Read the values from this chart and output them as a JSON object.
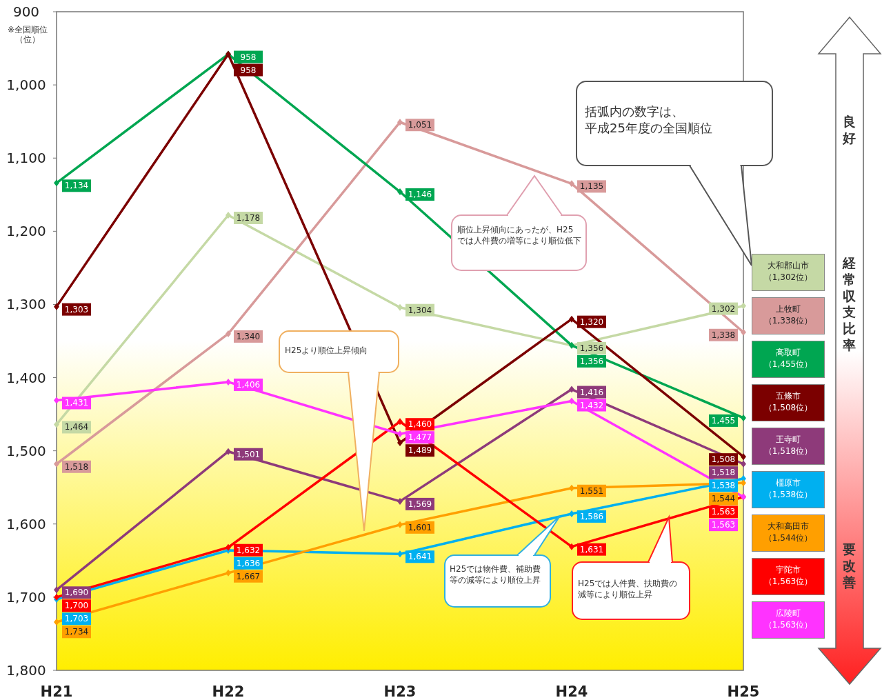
{
  "chart_data": {
    "type": "line",
    "ylabel": "※全国順位（位）",
    "categories": [
      "H21",
      "H22",
      "H23",
      "H24",
      "H25"
    ],
    "ylim": [
      1800,
      900
    ],
    "yticks": [
      900,
      {
        "value": 1000,
        "label": "1,000"
      },
      {
        "value": 1100,
        "label": "1,100"
      },
      {
        "value": 1200,
        "label": "1,200"
      },
      {
        "value": 1300,
        "label": "1,300"
      },
      {
        "value": 1400,
        "label": "1,400"
      },
      {
        "value": 1500,
        "label": "1,500"
      },
      {
        "value": 1600,
        "label": "1,600"
      },
      {
        "value": 1700,
        "label": "1,700"
      },
      {
        "value": 1800,
        "label": "1,800"
      }
    ],
    "series": [
      {
        "name": "大和郡山市（1,302位）",
        "color": "#c5d9a5",
        "values": [
          1464,
          1178,
          1304,
          1356,
          1302
        ],
        "value_labels": [
          "1,464",
          "1,178",
          "1,304",
          "1,356",
          "1,302"
        ]
      },
      {
        "name": "上牧町（1,338位）",
        "color": "#d89a9a",
        "values": [
          1518,
          1340,
          1051,
          1135,
          1338
        ],
        "value_labels": [
          "1,518",
          "1,340",
          "1,051",
          "1,135",
          "1,338"
        ]
      },
      {
        "name": "高取町（1,455位）",
        "color": "#00a651",
        "values": [
          1134,
          958,
          1146,
          1356,
          1455
        ],
        "value_labels": [
          "1,134",
          "958",
          "1,146",
          "1,356",
          "1,455"
        ]
      },
      {
        "name": "五條市（1,508位）",
        "color": "#7b0000",
        "values": [
          1303,
          958,
          1489,
          1320,
          1508
        ],
        "value_labels": [
          "1,303",
          "958",
          "1,489",
          "1,320",
          "1,508"
        ]
      },
      {
        "name": "王寺町（1,518位）",
        "color": "#8e3a7a",
        "values": [
          1690,
          1501,
          1569,
          1416,
          1518
        ],
        "value_labels": [
          "1,690",
          "1,501",
          "1,569",
          "1,416",
          "1,518"
        ]
      },
      {
        "name": "橿原市（1,538位）",
        "color": "#00b0f0",
        "values": [
          1703,
          1636,
          1641,
          1586,
          1538
        ],
        "value_labels": [
          "1,703",
          "1,636",
          "1,641",
          "1,586",
          "1,538"
        ]
      },
      {
        "name": "大和高田市（1,544位）",
        "color": "#ff9f00",
        "values": [
          1734,
          1667,
          1601,
          1551,
          1544
        ],
        "value_labels": [
          "1,734",
          "1,667",
          "1,601",
          "1,551",
          "1,544"
        ]
      },
      {
        "name": "宇陀市（1,563位）",
        "color": "#ff0000",
        "values": [
          1700,
          1632,
          1460,
          1631,
          1563
        ],
        "value_labels": [
          "1,700",
          "1,632",
          "1,460",
          "1,631",
          "1,563"
        ]
      },
      {
        "name": "広陵町（1,563位）",
        "color": "#ff33ff",
        "values": [
          1431,
          1406,
          1477,
          1432,
          1563
        ],
        "value_labels": [
          "1,431",
          "1,406",
          "1,477",
          "1,432",
          "1,563"
        ]
      }
    ],
    "marker": "diamond",
    "grid": false,
    "legend": "right",
    "annotations": [
      "括弧内の数字は、平成25年度の全国順位",
      "順位上昇傾向にあったが、H25では人件費の増等により順位低下",
      "H25より順位上昇傾向",
      "H25では物件費、補助費等の減等により順位上昇",
      "H25では人件費、扶助費の減等により順位上昇",
      "良好",
      "経常収支比率",
      "要改善"
    ]
  }
}
